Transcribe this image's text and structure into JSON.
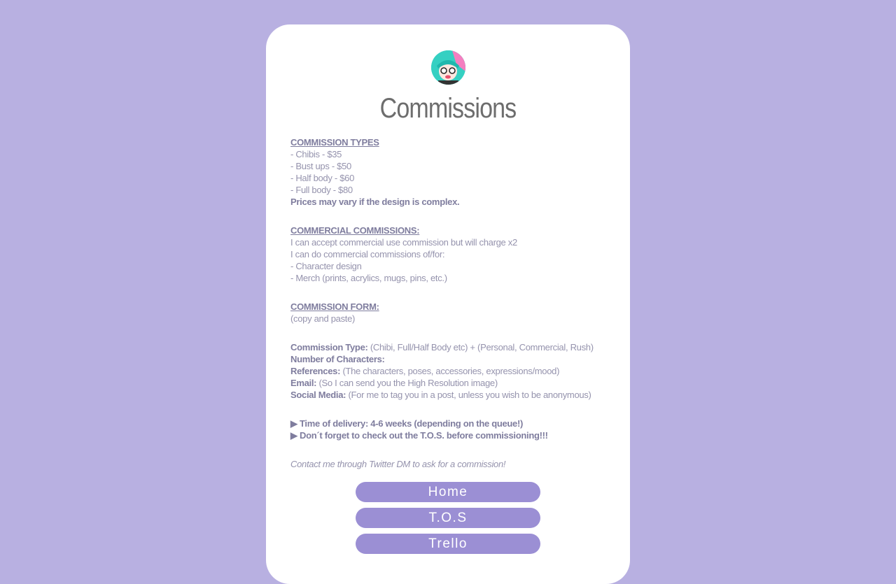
{
  "title": "Commissions",
  "types": {
    "heading": "COMMISSION TYPES",
    "items": [
      "- Chibis - $35",
      "- Bust ups - $50",
      "- Half body - $60",
      "- Full body - $80"
    ],
    "note": "Prices may vary if the design is complex."
  },
  "commercial": {
    "heading": "COMMERCIAL COMMISSIONS:",
    "lines": [
      "I can accept commercial use commission but will charge x2",
      "I can do commercial commissions of/for:",
      "- Character design",
      "- Merch (prints, acrylics, mugs, pins, etc.)"
    ]
  },
  "form": {
    "heading": "COMMISSION FORM:",
    "sub": "(copy and paste)",
    "fields": [
      {
        "label": "Commission Type:",
        "hint": " (Chibi, Full/Half Body etc) + (Personal, Commercial, Rush)"
      },
      {
        "label": "Number of Characters:",
        "hint": ""
      },
      {
        "label": "References:",
        "hint": " (The characters, poses, accessories, expressions/mood)"
      },
      {
        "label": "Email:",
        "hint": " (So I can send you the High Resolution image)"
      },
      {
        "label": "Social Media:",
        "hint": " (For me to tag you in a post, unless you wish to be anonymous)"
      }
    ]
  },
  "notes": [
    "▶ Time of delivery: 4-6 weeks (depending on the queue!)",
    "▶ Don´t forget to check out the T.O.S. before commissioning!!!"
  ],
  "contact": "Contact me through Twitter DM to ask for a commission!",
  "buttons": {
    "home": "Home",
    "tos": "T.O.S",
    "trello": "Trello"
  },
  "colors": {
    "background": "#b8b0e1",
    "button": "#9b8fd4",
    "text": "#9593ad"
  }
}
